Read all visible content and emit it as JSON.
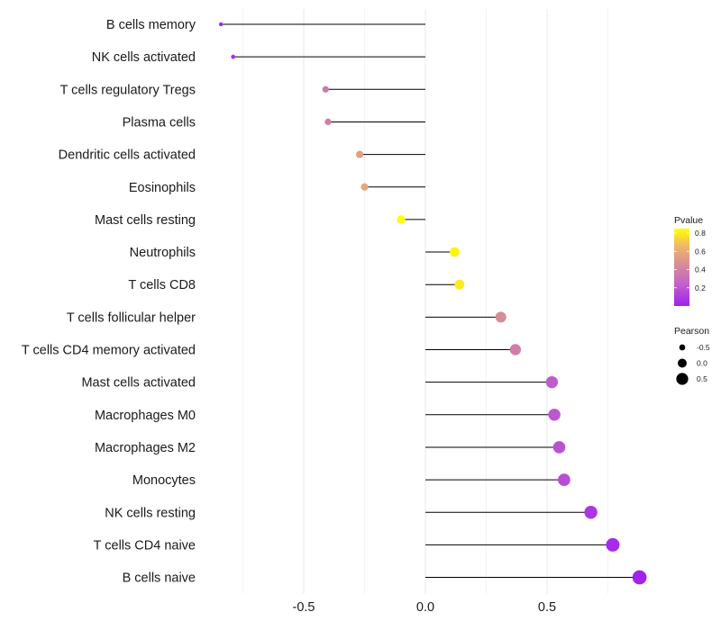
{
  "chart_data": {
    "type": "lollipop",
    "title": "",
    "xlabel": "",
    "ylabel": "",
    "xlim": [
      -0.98,
      0.98
    ],
    "x_ticks": [
      -0.5,
      0.0,
      0.5
    ],
    "x_tick_labels": [
      "-0.5",
      "0.0",
      "0.5"
    ],
    "grid": true,
    "categories": [
      "B cells memory",
      "NK cells activated",
      "T cells regulatory  Tregs",
      "Plasma cells",
      "Dendritic cells activated",
      "Eosinophils",
      "Mast cells resting",
      "Neutrophils",
      "T cells CD8",
      "T cells follicular helper",
      "T cells CD4 memory activated",
      "Mast cells activated",
      "Macrophages M0",
      "Macrophages M2",
      "Monocytes",
      "NK cells resting",
      "T cells CD4 naive",
      "B cells naive"
    ],
    "pearson": [
      -0.84,
      -0.79,
      -0.41,
      -0.4,
      -0.27,
      -0.25,
      -0.1,
      0.12,
      0.14,
      0.31,
      0.37,
      0.52,
      0.53,
      0.55,
      0.57,
      0.68,
      0.77,
      0.88
    ],
    "pvalue": [
      0.02,
      0.05,
      0.35,
      0.38,
      0.55,
      0.58,
      0.85,
      0.82,
      0.8,
      0.45,
      0.38,
      0.22,
      0.2,
      0.18,
      0.17,
      0.08,
      0.04,
      0.01
    ],
    "legend": {
      "color": {
        "title": "Pvalue",
        "ticks": [
          0.2,
          0.4,
          0.6,
          0.8
        ],
        "tick_labels": [
          "0.2",
          "0.4",
          "0.6",
          "0.8"
        ],
        "range": [
          0.0,
          0.85
        ],
        "low_color": "#a020f0",
        "high_color": "#ffff00"
      },
      "size": {
        "title": "Pearson",
        "values": [
          -0.5,
          0.0,
          0.5
        ],
        "labels": [
          "-0.5",
          "0.0",
          "0.5"
        ]
      },
      "placement": "right"
    }
  }
}
